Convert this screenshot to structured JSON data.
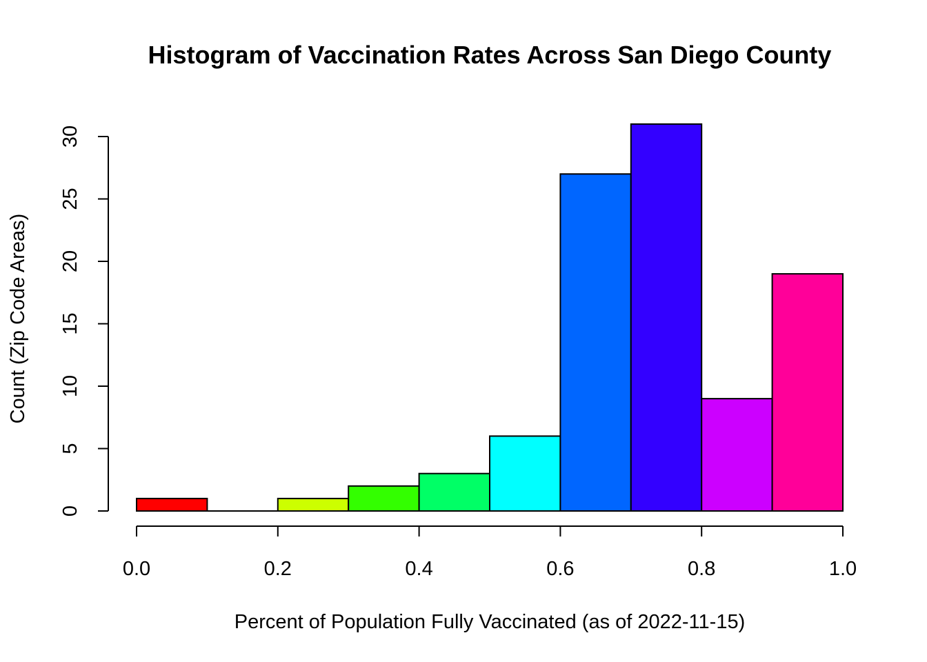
{
  "chart_data": {
    "type": "bar",
    "title": "Histogram of Vaccination Rates Across San Diego County",
    "xlabel": "Percent of Population Fully Vaccinated (as of 2022-11-15)",
    "ylabel": "Count (Zip Code Areas)",
    "bins": [
      {
        "x0": 0.0,
        "x1": 0.1,
        "count": 1,
        "color": "#FF0000"
      },
      {
        "x0": 0.1,
        "x1": 0.2,
        "count": 0,
        "color": "#FF9900"
      },
      {
        "x0": 0.2,
        "x1": 0.3,
        "count": 1,
        "color": "#CCFF00"
      },
      {
        "x0": 0.3,
        "x1": 0.4,
        "count": 2,
        "color": "#33FF00"
      },
      {
        "x0": 0.4,
        "x1": 0.5,
        "count": 3,
        "color": "#00FF66"
      },
      {
        "x0": 0.5,
        "x1": 0.6,
        "count": 6,
        "color": "#00FFFF"
      },
      {
        "x0": 0.6,
        "x1": 0.7,
        "count": 27,
        "color": "#0066FF"
      },
      {
        "x0": 0.7,
        "x1": 0.8,
        "count": 31,
        "color": "#3300FF"
      },
      {
        "x0": 0.8,
        "x1": 0.9,
        "count": 9,
        "color": "#CC00FF"
      },
      {
        "x0": 0.9,
        "x1": 1.0,
        "count": 19,
        "color": "#FF0099"
      }
    ],
    "xlim": [
      0.0,
      1.0
    ],
    "ylim": [
      0,
      31
    ],
    "xticks": [
      "0.0",
      "0.2",
      "0.4",
      "0.6",
      "0.8",
      "1.0"
    ],
    "yticks": [
      "0",
      "5",
      "10",
      "15",
      "20",
      "25",
      "30"
    ],
    "grid": false,
    "legend": "none"
  }
}
